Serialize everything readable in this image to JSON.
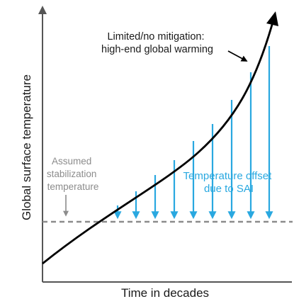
{
  "diagram": {
    "y_axis_label": "Global surface temperature",
    "x_axis_label": "Time in decades",
    "warming_label": [
      "Limited/no mitigation:",
      "high-end global warming"
    ],
    "stabilization_label": [
      "Assumed",
      "stabilization",
      "temperature"
    ],
    "offset_label": [
      "Temperature offset",
      "due to SAI"
    ]
  },
  "colors": {
    "axis": "#555555",
    "curve": "#000000",
    "arrows": "#29a8e0",
    "baseline": "#8c8c8c",
    "text": "#1a1a1a",
    "gray_text": "#8c8c8c",
    "blue_text": "#29a8e0"
  }
}
